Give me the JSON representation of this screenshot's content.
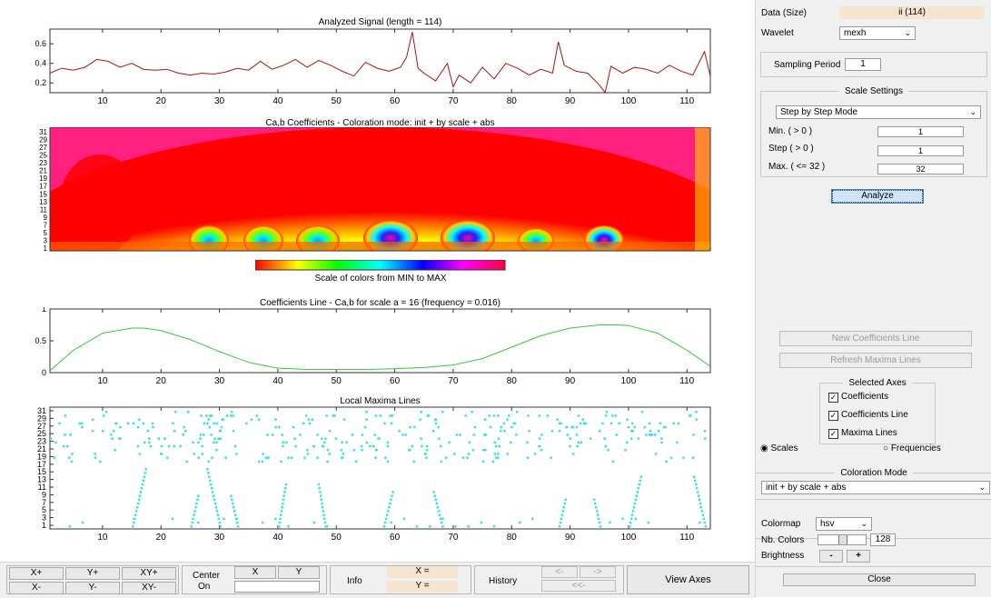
{
  "plots": {
    "signal": {
      "title": "Analyzed Signal (length = 114)",
      "yticks": [
        "0.6",
        "0.4",
        "0.2"
      ],
      "xticks": [
        "10",
        "20",
        "30",
        "40",
        "50",
        "60",
        "70",
        "80",
        "90",
        "100",
        "110"
      ],
      "line_color": "#b01010"
    },
    "coefs": {
      "title": "Ca,b Coefficients - Coloration mode: init + by scale + abs",
      "yticks": [
        "31",
        "29",
        "27",
        "25",
        "23",
        "21",
        "19",
        "17",
        "15",
        "13",
        "11",
        "9",
        "7",
        "5",
        "3",
        "1"
      ],
      "colorbar_label": "Scale of colors from MIN to MAX"
    },
    "coefline": {
      "title": "Coefficients Line - Ca,b for scale a = 16  (frequency =  0.016)",
      "yticks": [
        "1",
        "0.5",
        "0"
      ],
      "xticks": [
        "10",
        "20",
        "30",
        "40",
        "50",
        "60",
        "70",
        "80",
        "90",
        "100",
        "110"
      ],
      "line_color": "#33cc33"
    },
    "maxima": {
      "title": "Local Maxima Lines",
      "yticks": [
        "31",
        "29",
        "27",
        "25",
        "23",
        "21",
        "19",
        "17",
        "15",
        "13",
        "11",
        "9",
        "7",
        "5",
        "3",
        "1"
      ],
      "xticks": [
        "10",
        "20",
        "30",
        "40",
        "50",
        "60",
        "70",
        "80",
        "90",
        "100",
        "110"
      ],
      "dot_color": "#40e0e0"
    }
  },
  "panel": {
    "data_label": "Data  (Size)",
    "data_value": "ii  (114)",
    "wavelet_label": "Wavelet",
    "wavelet_value": "mexh",
    "sampling_label": "Sampling Period",
    "sampling_value": "1",
    "scale_settings_title": "Scale Settings",
    "scale_mode": "Step by Step Mode",
    "min_label": "Min.  ( > 0 )",
    "min_value": "1",
    "step_label": "Step  ( > 0 )",
    "step_value": "1",
    "max_label": "Max.  ( <= 32 )",
    "max_value": "32",
    "analyze": "Analyze",
    "new_coef_line": "New Coefficients Line",
    "refresh_maxima": "Refresh Maxima Lines",
    "selected_axes_title": "Selected Axes",
    "axes_options": [
      "Coefficients",
      "Coefficients Line",
      "Maxima Lines"
    ],
    "radio_scales": "Scales",
    "radio_frequencies": "Frequencies",
    "coloration_title": "Coloration Mode",
    "coloration_value": "init + by scale + abs",
    "colormap_label": "Colormap",
    "colormap_value": "hsv",
    "nb_colors_label": "Nb. Colors",
    "nb_colors_value": "128",
    "brightness_label": "Brightness",
    "brightness_minus": "-",
    "brightness_plus": "+",
    "close": "Close"
  },
  "toolbar": {
    "xplus": "X+",
    "yplus": "Y+",
    "xyplus": "XY+",
    "xminus": "X-",
    "yminus": "Y-",
    "xyminus": "XY-",
    "center_label": "Center",
    "on_label": "On",
    "center_x": "X",
    "center_y": "Y",
    "info_label": "Info",
    "x_eq": "X =",
    "y_eq": "Y =",
    "history_label": "History",
    "hist_back": "<-",
    "hist_fwd": "->",
    "hist_first": "<<-",
    "view_axes": "View Axes"
  },
  "chart_data": [
    {
      "type": "line",
      "title": "Analyzed Signal (length = 114)",
      "xlim": [
        1,
        114
      ],
      "ylim": [
        0.1,
        0.75
      ],
      "x": [
        1,
        3,
        5,
        7,
        9,
        11,
        13,
        15,
        17,
        19,
        21,
        23,
        25,
        27,
        29,
        31,
        33,
        35,
        37,
        39,
        41,
        43,
        45,
        47,
        49,
        51,
        53,
        55,
        57,
        59,
        61,
        62,
        63,
        64,
        65,
        67,
        69,
        70,
        71,
        73,
        75,
        77,
        79,
        81,
        83,
        85,
        87,
        88,
        89,
        91,
        93,
        95,
        96,
        97,
        99,
        101,
        103,
        105,
        107,
        109,
        111,
        113,
        114
      ],
      "values": [
        0.3,
        0.35,
        0.33,
        0.36,
        0.44,
        0.42,
        0.36,
        0.4,
        0.34,
        0.33,
        0.34,
        0.3,
        0.28,
        0.3,
        0.29,
        0.31,
        0.35,
        0.33,
        0.42,
        0.34,
        0.38,
        0.44,
        0.36,
        0.43,
        0.38,
        0.32,
        0.27,
        0.41,
        0.35,
        0.32,
        0.36,
        0.46,
        0.72,
        0.35,
        0.3,
        0.22,
        0.4,
        0.16,
        0.28,
        0.2,
        0.36,
        0.24,
        0.4,
        0.35,
        0.28,
        0.34,
        0.3,
        0.62,
        0.38,
        0.32,
        0.3,
        0.18,
        0.1,
        0.37,
        0.3,
        0.36,
        0.34,
        0.3,
        0.38,
        0.32,
        0.28,
        0.52,
        0.27
      ]
    },
    {
      "type": "line",
      "title": "Coefficients Line - Ca,b for scale a = 16  (frequency =  0.016)",
      "xlim": [
        1,
        114
      ],
      "ylim": [
        0,
        1
      ],
      "x": [
        1,
        5,
        10,
        15,
        17,
        20,
        25,
        30,
        35,
        40,
        45,
        50,
        55,
        60,
        65,
        70,
        75,
        80,
        85,
        90,
        95,
        98,
        100,
        105,
        110,
        114
      ],
      "values": [
        0.03,
        0.35,
        0.62,
        0.7,
        0.7,
        0.66,
        0.52,
        0.33,
        0.16,
        0.07,
        0.05,
        0.05,
        0.05,
        0.06,
        0.08,
        0.12,
        0.22,
        0.4,
        0.58,
        0.7,
        0.75,
        0.75,
        0.74,
        0.62,
        0.35,
        0.1
      ]
    }
  ]
}
